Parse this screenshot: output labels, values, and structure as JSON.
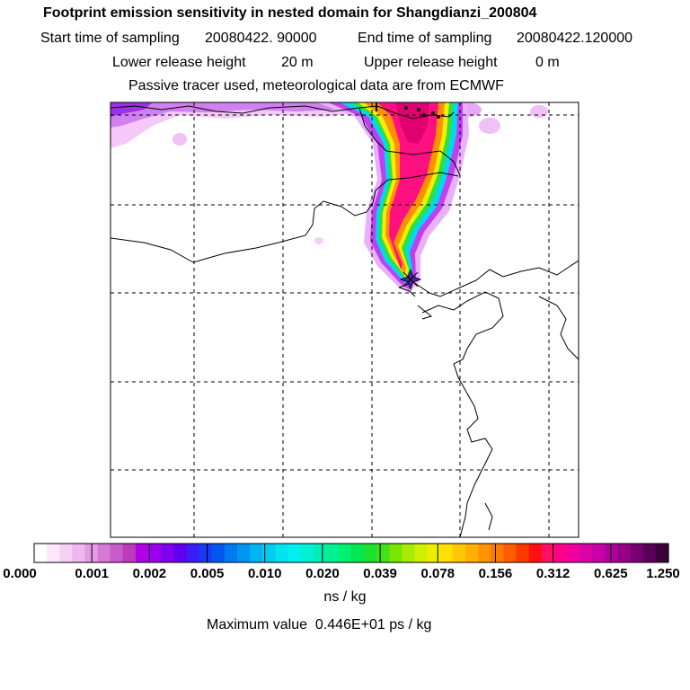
{
  "header": {
    "title": "Footprint emission sensitivity in nested domain for Shangdianzi_200804",
    "start_label": "Start time of sampling",
    "start_value": "20080422. 90000",
    "end_label": "End time of sampling",
    "end_value": "20080422.120000",
    "lower_label": "Lower release height",
    "lower_value": "20 m",
    "upper_label": "Upper release height",
    "upper_value": "0 m",
    "note": "Passive tracer used, meteorological data are from ECMWF"
  },
  "colorbar": {
    "labels": [
      "0.000",
      "0.001",
      "0.002",
      "0.005",
      "0.010",
      "0.020",
      "0.039",
      "0.078",
      "0.156",
      "0.312",
      "0.625",
      "1.250"
    ],
    "colors": [
      "#ffffff",
      "#fbe6fb",
      "#f6d0f6",
      "#f0b7f0",
      "#e49ce4",
      "#d67ad6",
      "#c95ac9",
      "#bb3bbb",
      "#b100e8",
      "#9a00ee",
      "#8000f0",
      "#6000f2",
      "#3a1cf8",
      "#1a3af6",
      "#0058f0",
      "#007af0",
      "#0096f0",
      "#00b4f0",
      "#00cef0",
      "#00e4ee",
      "#00f0f0",
      "#00f0d4",
      "#00f0b4",
      "#00f094",
      "#00f070",
      "#00e850",
      "#1ee030",
      "#44e018",
      "#7ae600",
      "#a6ec00",
      "#cff000",
      "#eeee00",
      "#ffe000",
      "#ffc800",
      "#ffb000",
      "#ff9400",
      "#ff7a00",
      "#ff5c00",
      "#ff3800",
      "#ff1010",
      "#ff1064",
      "#ff0088",
      "#f0009c",
      "#dc00a8",
      "#c800a8",
      "#b0009c",
      "#940086",
      "#780070",
      "#5a0058",
      "#3a003a"
    ],
    "units": "ns / kg"
  },
  "max_value": {
    "label": "Maximum value",
    "value": "0.446E+01 ps / kg"
  },
  "map": {
    "release_site_marker": "star-icon",
    "plume_colors": [
      "#e8b0ff",
      "#c040f0",
      "#00d8f0",
      "#30e040",
      "#f0f000",
      "#ff9000",
      "#ff1080"
    ]
  }
}
